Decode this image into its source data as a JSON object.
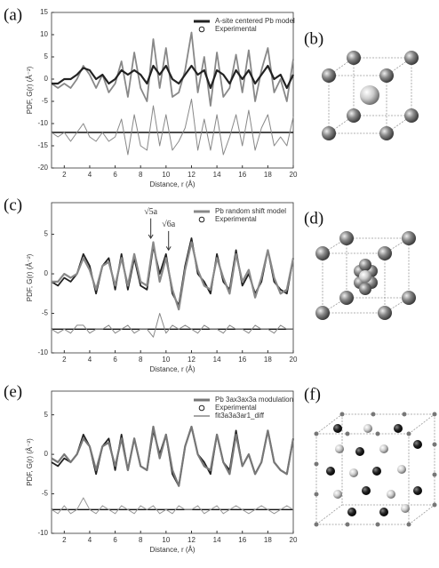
{
  "panel_labels": [
    "(a)",
    "(b)",
    "(c)",
    "(d)",
    "(e)",
    "(f)"
  ],
  "chart_data": [
    {
      "type": "line",
      "xlabel": "Distance, r (Å)",
      "ylabel": "PDF, G(r) (Å⁻²)",
      "x": [
        1,
        1.5,
        2,
        2.5,
        3,
        3.5,
        4,
        4.5,
        5,
        5.5,
        6,
        6.5,
        7,
        7.5,
        8,
        8.5,
        9,
        9.5,
        10,
        10.5,
        11,
        11.5,
        12,
        12.5,
        13,
        13.5,
        14,
        14.5,
        15,
        15.5,
        16,
        16.5,
        17,
        17.5,
        18,
        18.5,
        19,
        19.5,
        20
      ],
      "xlim": [
        1,
        20
      ],
      "xticks": [
        2,
        4,
        6,
        8,
        10,
        12,
        14,
        16,
        18,
        20
      ],
      "ylim": [
        -20,
        15
      ],
      "yticks": [
        -20,
        -15,
        -10,
        -5,
        0,
        5,
        10,
        15
      ],
      "baseline": -12,
      "legend": "upper right",
      "series": [
        {
          "name": "A-site centered Pb model",
          "color": "#222222",
          "marker": "line",
          "values": [
            -1,
            -1,
            0,
            0,
            1,
            2.5,
            2,
            0,
            1,
            -1,
            0,
            2,
            1,
            2,
            1,
            -1,
            3,
            1,
            3,
            0,
            -1,
            1,
            3,
            1,
            2,
            -2,
            2,
            1,
            -1,
            2,
            0,
            2,
            -1,
            1,
            3,
            0,
            1,
            -2,
            1
          ]
        },
        {
          "name": "Experimental",
          "color": "#888888",
          "marker": "circle",
          "values": [
            -1,
            -2,
            -1,
            -2,
            0,
            3,
            1,
            -2,
            1,
            -3,
            -1,
            4,
            -4,
            6,
            -2,
            -5,
            9,
            -2,
            7,
            -4,
            -3,
            2,
            10.5,
            -3,
            5,
            -6,
            6,
            -4,
            -2,
            5.5,
            -3,
            6.5,
            -5,
            2,
            7,
            -3,
            0,
            -5,
            4.5
          ]
        },
        {
          "color": "#888888",
          "values": [
            -12,
            -13,
            -12,
            -14,
            -12,
            -10,
            -13,
            -14,
            -12,
            -14,
            -13,
            -9,
            -17,
            -8,
            -15,
            -16,
            -6,
            -15,
            -8,
            -16,
            -14,
            -11,
            -4.5,
            -16,
            -9,
            -16,
            -8,
            -17,
            -13,
            -8,
            -15,
            -7,
            -16,
            -11,
            -8,
            -15,
            -13,
            -15,
            -8.5
          ]
        }
      ]
    },
    {
      "type": "line",
      "xlabel": "Distance, r (Å)",
      "ylabel": "PDF, G(r) (Å⁻²)",
      "x": [
        1,
        1.5,
        2,
        2.5,
        3,
        3.5,
        4,
        4.5,
        5,
        5.5,
        6,
        6.5,
        7,
        7.5,
        8,
        8.5,
        9,
        9.5,
        10,
        10.5,
        11,
        11.5,
        12,
        12.5,
        13,
        13.5,
        14,
        14.5,
        15,
        15.5,
        16,
        16.5,
        17,
        17.5,
        18,
        18.5,
        19,
        19.5,
        20
      ],
      "xlim": [
        1,
        20
      ],
      "xticks": [
        2,
        4,
        6,
        8,
        10,
        12,
        14,
        16,
        18,
        20
      ],
      "ylim": [
        -10,
        9
      ],
      "yticks": [
        -10,
        -5,
        0,
        5
      ],
      "baseline": -7,
      "legend": "upper right",
      "annotations": [
        {
          "text": "√5a",
          "x": 8.8,
          "y": 7.8,
          "target": 4.5
        },
        {
          "text": "√6a",
          "x": 10.2,
          "y": 6.2,
          "target": 3
        }
      ],
      "series": [
        {
          "name": "Pb random shift model",
          "color": "#888888",
          "marker": "line",
          "values": [
            -1,
            -1,
            0,
            -0.5,
            0,
            2,
            0.5,
            -2,
            1,
            1.5,
            -1.5,
            2,
            -1.5,
            2.5,
            -1,
            -1.5,
            4,
            -1,
            2,
            -2,
            -4.5,
            0.5,
            4,
            0.5,
            -1.5,
            -2,
            2,
            -0.5,
            -2.5,
            2.5,
            -1,
            0.5,
            -3,
            -0.5,
            3,
            -0.5,
            -2.5,
            -2,
            2
          ]
        },
        {
          "name": "Experimental",
          "color": "#222222",
          "marker": "circle",
          "values": [
            -1,
            -1.5,
            -0.5,
            -1,
            0,
            2.5,
            1,
            -2.5,
            1,
            2,
            -2,
            2.5,
            -2,
            2,
            -1.5,
            -2,
            3.5,
            0,
            2.5,
            -2.5,
            -4,
            1,
            4.5,
            0,
            -1,
            -2.5,
            2.5,
            -1,
            -2,
            3,
            -1.5,
            0,
            -2.5,
            -1,
            3,
            -1,
            -2,
            -2.5,
            2
          ]
        },
        {
          "color": "#888888",
          "values": [
            -7,
            -7.5,
            -7,
            -7.5,
            -6.5,
            -6.5,
            -7.5,
            -7,
            -7,
            -6.5,
            -7.5,
            -7,
            -6.5,
            -7.5,
            -7,
            -7,
            -8,
            -5,
            -7.5,
            -6.5,
            -7,
            -6.5,
            -7,
            -7.5,
            -6.5,
            -7,
            -7,
            -7.5,
            -6.5,
            -7,
            -7,
            -7.5,
            -6.5,
            -7,
            -7,
            -7.5,
            -6.5,
            -7,
            -7
          ]
        }
      ]
    },
    {
      "type": "line",
      "xlabel": "Distance, r (Å)",
      "ylabel": "PDF, G(r) (Å⁻²)",
      "x": [
        1,
        1.5,
        2,
        2.5,
        3,
        3.5,
        4,
        4.5,
        5,
        5.5,
        6,
        6.5,
        7,
        7.5,
        8,
        8.5,
        9,
        9.5,
        10,
        10.5,
        11,
        11.5,
        12,
        12.5,
        13,
        13.5,
        14,
        14.5,
        15,
        15.5,
        16,
        16.5,
        17,
        17.5,
        18,
        18.5,
        19,
        19.5,
        20
      ],
      "xlim": [
        1,
        20
      ],
      "xticks": [
        2,
        4,
        6,
        8,
        10,
        12,
        14,
        16,
        18,
        20
      ],
      "ylim": [
        -10,
        8
      ],
      "yticks": [
        -10,
        -5,
        0,
        5
      ],
      "baseline": -7,
      "legend": "upper right",
      "series": [
        {
          "name": "Pb 3ax3ax3a modulation",
          "color": "#777777",
          "marker": "line",
          "values": [
            -0.5,
            -1,
            0,
            -1,
            0,
            2,
            1,
            -2,
            1,
            1.5,
            -1.5,
            2,
            -2,
            2,
            -1.5,
            -2,
            3.5,
            -0.5,
            2.5,
            -2,
            -4,
            1,
            3.5,
            0,
            -1.5,
            -2,
            2.5,
            -1,
            -2.5,
            2.5,
            -1.5,
            0,
            -2.5,
            -1,
            3,
            -1,
            -2,
            -2.5,
            2
          ]
        },
        {
          "name": "Experimental",
          "color": "#222222",
          "marker": "circle",
          "values": [
            -1,
            -1.5,
            -0.5,
            -1,
            0,
            2.5,
            1,
            -2.5,
            1,
            2,
            -2,
            2.5,
            -2,
            2,
            -1.5,
            -2,
            3,
            0,
            2.5,
            -2.5,
            -4,
            1,
            3.5,
            0,
            -1,
            -2.5,
            2.5,
            -1,
            -2,
            3,
            -1.5,
            0,
            -2.5,
            -1,
            3,
            -1,
            -2,
            -2.5,
            2
          ]
        },
        {
          "name": "fit3a3a3ar1_diff",
          "color": "#999999",
          "marker": "thin",
          "values": [
            -7,
            -7.5,
            -6.5,
            -7.5,
            -7,
            -5.5,
            -7,
            -7.5,
            -6.5,
            -7,
            -7.5,
            -6.5,
            -7,
            -7.5,
            -6.5,
            -7,
            -6.5,
            -7.5,
            -7,
            -7.5,
            -6.5,
            -7,
            -7,
            -6.5,
            -7.5,
            -7,
            -6.5,
            -7.5,
            -7,
            -6.5,
            -7,
            -7.5,
            -7,
            -6.5,
            -7,
            -7.5,
            -7,
            -6.5,
            -7
          ]
        }
      ]
    }
  ]
}
